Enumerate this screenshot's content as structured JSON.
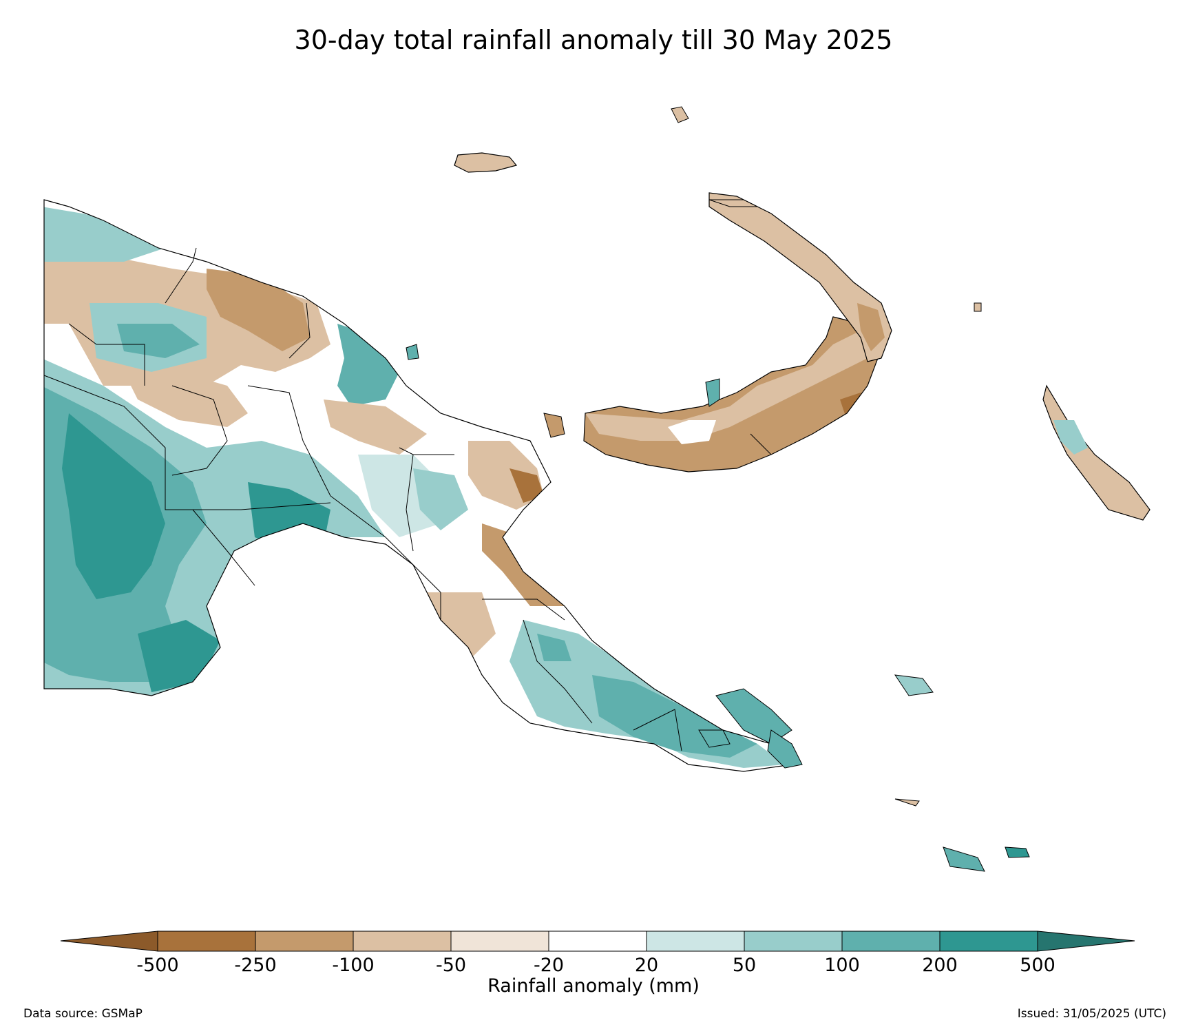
{
  "title": "30-day total rainfall anomaly till 30 May 2025",
  "colorbar": {
    "label": "Rainfall anomaly (mm)",
    "ticks": [
      "-500",
      "-250",
      "-100",
      "-50",
      "-20",
      "20",
      "50",
      "100",
      "200",
      "500"
    ],
    "colors": {
      "below_-500": "#8c5a2a",
      "-500_-250": "#a8723b",
      "-250_-100": "#c49a6c",
      "-100_-50": "#dcc0a3",
      "-50_-20": "#f0e4d8",
      "-20_20": "#ffffff",
      "20_50": "#cde6e5",
      "50_100": "#98cdcb",
      "100_200": "#5fb0ad",
      "200_500": "#2e9791",
      "above_500": "#26756f"
    }
  },
  "footer": {
    "data_source": "Data source: GSMaP",
    "issued": "Issued: 31/05/2025 (UTC)"
  }
}
